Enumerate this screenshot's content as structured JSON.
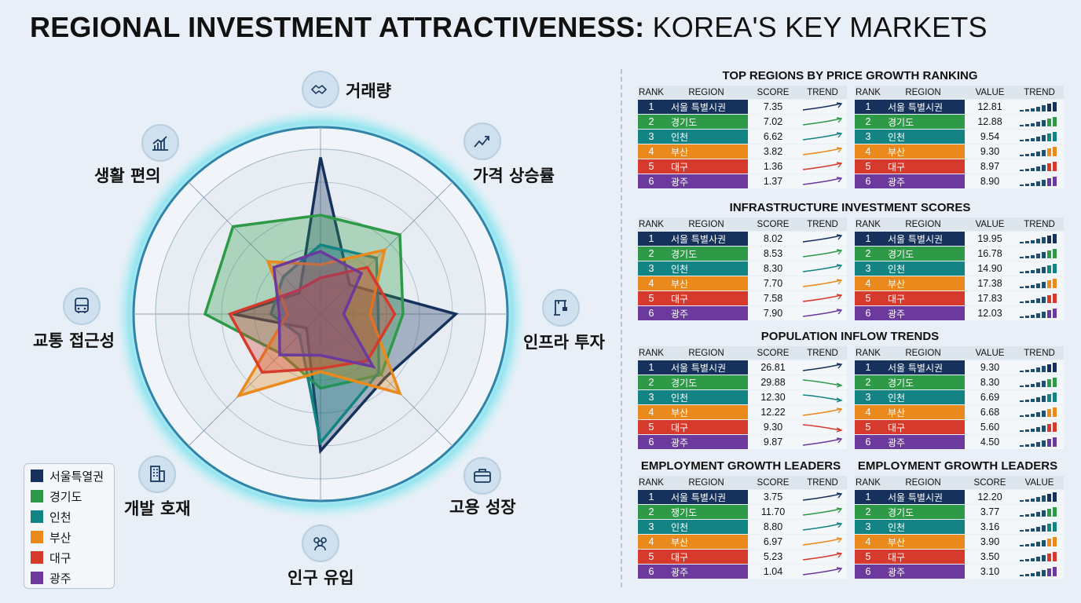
{
  "title": {
    "bold": "REGIONAL INVESTMENT ATTRACTIVENESS:",
    "light": " KOREA'S KEY MARKETS"
  },
  "colors": [
    "#16325c",
    "#2e9a48",
    "#138483",
    "#ea8a1c",
    "#d63a2c",
    "#6b3a9c"
  ],
  "legend": [
    "서울특열권",
    "경기도",
    "인천",
    "부산",
    "대구",
    "광주"
  ],
  "chart_data": {
    "type": "radar",
    "axes": [
      "거래량",
      "가격 상승률",
      "인프라 투자",
      "고용 성장",
      "인구 유입",
      "개발 호재",
      "교통 접근성",
      "생활 편의"
    ],
    "axis_icons": [
      "handshake-icon",
      "chart-up-icon",
      "crane-icon",
      "briefcase-icon",
      "people-icon",
      "building-icon",
      "bus-icon",
      "bar-chart-icon"
    ],
    "max": 10,
    "series": [
      {
        "name": "서울특열권",
        "values": [
          9.5,
          2.5,
          8.2,
          5.5,
          8.3,
          1.2,
          5.3,
          1.8
        ]
      },
      {
        "name": "경기도",
        "values": [
          6.0,
          6.8,
          5.0,
          5.2,
          4.5,
          3.4,
          7.0,
          7.5
        ]
      },
      {
        "name": "인천",
        "values": [
          4.2,
          4.8,
          3.5,
          5.0,
          7.8,
          1.8,
          3.0,
          3.2
        ]
      },
      {
        "name": "부산",
        "values": [
          3.0,
          5.5,
          3.0,
          6.8,
          3.5,
          7.0,
          2.0,
          4.5
        ]
      },
      {
        "name": "대구",
        "values": [
          2.2,
          4.0,
          4.5,
          4.0,
          3.3,
          5.0,
          5.5,
          2.0
        ]
      },
      {
        "name": "광주",
        "values": [
          3.8,
          3.5,
          1.4,
          4.5,
          2.5,
          3.5,
          2.5,
          4.0
        ]
      }
    ]
  },
  "sections": [
    {
      "title": "TOP REGIONS BY PRICE GROWTH RANKING",
      "tables": [
        {
          "headers": [
            "RANK",
            "REGION",
            "SCORE",
            "TREND"
          ],
          "trend": "line",
          "rows": [
            {
              "rank": "1",
              "region": "서울 특별시권",
              "value": "7.35",
              "dir": "up"
            },
            {
              "rank": "2",
              "region": "경기도",
              "value": "7.02",
              "dir": "up"
            },
            {
              "rank": "3",
              "region": "인천",
              "value": "6.62",
              "dir": "up"
            },
            {
              "rank": "4",
              "region": "부산",
              "value": "3.82",
              "dir": "up"
            },
            {
              "rank": "5",
              "region": "대구",
              "value": "1.36",
              "dir": "up"
            },
            {
              "rank": "6",
              "region": "광주",
              "value": "1.37",
              "dir": "up"
            }
          ]
        },
        {
          "headers": [
            "RANK",
            "REGION",
            "VALUE",
            "TREND"
          ],
          "trend": "bars",
          "rows": [
            {
              "rank": "1",
              "region": "서울 특별시권",
              "value": "12.81"
            },
            {
              "rank": "2",
              "region": "경기도",
              "value": "12.88"
            },
            {
              "rank": "3",
              "region": "인천",
              "value": "9.54"
            },
            {
              "rank": "4",
              "region": "부산",
              "value": "9.30"
            },
            {
              "rank": "5",
              "region": "대구",
              "value": "8.97"
            },
            {
              "rank": "6",
              "region": "광주",
              "value": "8.90"
            }
          ]
        }
      ]
    },
    {
      "title": "INFRASTRUCTURE INVESTMENT SCORES",
      "tables": [
        {
          "headers": [
            "RANK",
            "REGION",
            "SCORE",
            "TREND"
          ],
          "trend": "line",
          "rows": [
            {
              "rank": "1",
              "region": "서울 특별사권",
              "value": "8.02",
              "dir": "up"
            },
            {
              "rank": "2",
              "region": "경기도",
              "value": "8.53",
              "dir": "up"
            },
            {
              "rank": "3",
              "region": "인천",
              "value": "8.30",
              "dir": "up"
            },
            {
              "rank": "4",
              "region": "부산",
              "value": "7.70",
              "dir": "up"
            },
            {
              "rank": "5",
              "region": "대구",
              "value": "7.58",
              "dir": "up"
            },
            {
              "rank": "6",
              "region": "광주",
              "value": "7.90",
              "dir": "up"
            }
          ]
        },
        {
          "headers": [
            "RANK",
            "REGION",
            "VALUE",
            "TREND"
          ],
          "trend": "bars",
          "rows": [
            {
              "rank": "1",
              "region": "서울 특별시권",
              "value": "19.95"
            },
            {
              "rank": "2",
              "region": "경기도",
              "value": "16.78"
            },
            {
              "rank": "3",
              "region": "인천",
              "value": "14.90"
            },
            {
              "rank": "4",
              "region": "부산",
              "value": "17.38"
            },
            {
              "rank": "5",
              "region": "대구",
              "value": "17.83"
            },
            {
              "rank": "6",
              "region": "광주",
              "value": "12.03"
            }
          ]
        }
      ]
    },
    {
      "title": "POPULATION INFLOW TRENDS",
      "tables": [
        {
          "headers": [
            "RANK",
            "REGION",
            "SCORE",
            "TREND"
          ],
          "trend": "line",
          "rows": [
            {
              "rank": "1",
              "region": "서울 특별시권",
              "value": "26.81",
              "dir": "up"
            },
            {
              "rank": "2",
              "region": "경기도",
              "value": "29.88",
              "dir": "down"
            },
            {
              "rank": "3",
              "region": "인천",
              "value": "12.30",
              "dir": "down"
            },
            {
              "rank": "4",
              "region": "부산",
              "value": "12.22",
              "dir": "up"
            },
            {
              "rank": "5",
              "region": "대구",
              "value": "9.30",
              "dir": "down"
            },
            {
              "rank": "6",
              "region": "광주",
              "value": "9.87",
              "dir": "up"
            }
          ]
        },
        {
          "headers": [
            "RANK",
            "REGION",
            "VALUE",
            "TREND"
          ],
          "trend": "bars",
          "rows": [
            {
              "rank": "1",
              "region": "서울 특별시권",
              "value": "9.30"
            },
            {
              "rank": "2",
              "region": "경기도",
              "value": "8.30"
            },
            {
              "rank": "3",
              "region": "인천",
              "value": "6.69"
            },
            {
              "rank": "4",
              "region": "부산",
              "value": "6.68"
            },
            {
              "rank": "5",
              "region": "대구",
              "value": "5.60"
            },
            {
              "rank": "6",
              "region": "광주",
              "value": "4.50"
            }
          ]
        }
      ]
    },
    {
      "title": "",
      "tables": [
        {
          "title": "EMPLOYMENT GROWTH LEADERS",
          "headers": [
            "RANK",
            "REGION",
            "SCORE",
            "TREND"
          ],
          "trend": "line",
          "rows": [
            {
              "rank": "1",
              "region": "서울 특별시권",
              "value": "3.75",
              "dir": "up"
            },
            {
              "rank": "2",
              "region": "쟁기도",
              "value": "11.70",
              "dir": "up"
            },
            {
              "rank": "3",
              "region": "인천",
              "value": "8.80",
              "dir": "up"
            },
            {
              "rank": "4",
              "region": "부산",
              "value": "6.97",
              "dir": "up"
            },
            {
              "rank": "5",
              "region": "대구",
              "value": "5.23",
              "dir": "up"
            },
            {
              "rank": "6",
              "region": "광주",
              "value": "1.04",
              "dir": "up"
            }
          ]
        },
        {
          "title": "EMPLOYMENT GROWTH LEADERS",
          "headers": [
            "RANK",
            "REGION",
            "SCORE",
            "VALUE"
          ],
          "trend": "bars",
          "rows": [
            {
              "rank": "1",
              "region": "서울 특별시권",
              "value": "12.20"
            },
            {
              "rank": "2",
              "region": "경기도",
              "value": "3.77"
            },
            {
              "rank": "3",
              "region": "인천",
              "value": "3.16"
            },
            {
              "rank": "4",
              "region": "부산",
              "value": "3.90"
            },
            {
              "rank": "5",
              "region": "대구",
              "value": "3.50"
            },
            {
              "rank": "6",
              "region": "광주",
              "value": "3.10"
            }
          ]
        }
      ]
    }
  ]
}
